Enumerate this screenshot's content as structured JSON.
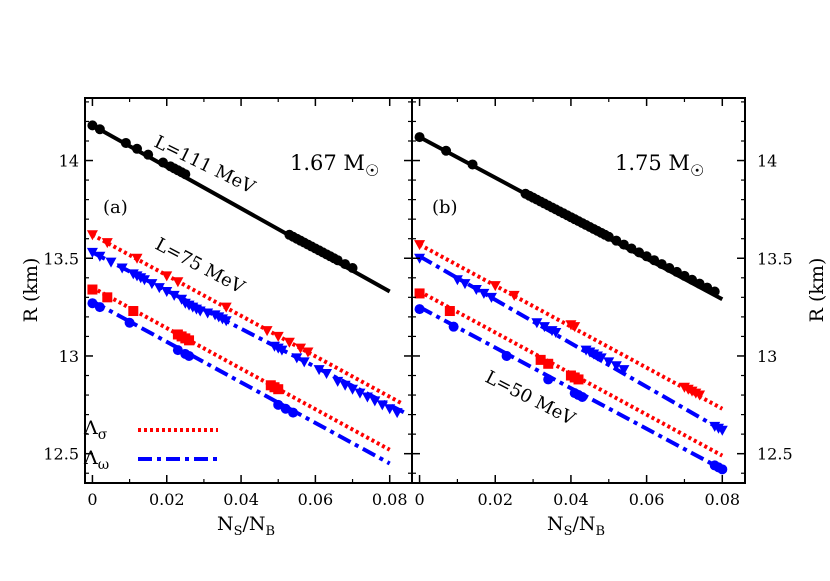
{
  "chart_data": [
    {
      "type": "scatter",
      "panel_label": "(a)",
      "mass_label": "1.67 M",
      "mass_symbol": "☉",
      "xlabel": {
        "main": "N",
        "sub1": "S",
        "mid": "/N",
        "sub2": "B"
      },
      "ylabel": "R (km)",
      "xlim": [
        -0.002,
        0.086
      ],
      "ylim": [
        12.35,
        14.32
      ],
      "xticks": [
        "0",
        "0.02",
        "0.04",
        "0.06",
        "0.08"
      ],
      "xtick_values": [
        0,
        0.02,
        0.04,
        0.06,
        0.08
      ],
      "yticks": [
        "12.5",
        "13",
        "13.5",
        "14"
      ],
      "ytick_values": [
        12.5,
        13.0,
        13.5,
        14.0
      ],
      "annotations": [
        {
          "text": "L=111 MeV",
          "x": 0.035,
          "y": 14.0
        },
        {
          "text": "L=75 MeV",
          "x": 0.05,
          "y": 13.42
        }
      ],
      "legend": [
        {
          "symbol": "Λ",
          "sub": "σ",
          "style": "dotted",
          "color": "#ff0000"
        },
        {
          "symbol": "Λ",
          "sub": "ω",
          "style": "dashdot",
          "color": "#0000ff"
        }
      ],
      "series": [
        {
          "line": [
            [
              0,
              14.18
            ],
            [
              0.08,
              13.33
            ]
          ],
          "color": "#000000",
          "line_style": "solid",
          "marker": "circle",
          "points": [
            [
              0,
              14.18
            ],
            [
              0.002,
              14.16
            ],
            [
              0.009,
              14.09
            ],
            [
              0.012,
              14.06
            ],
            [
              0.015,
              14.03
            ],
            [
              0.019,
              13.99
            ],
            [
              0.021,
              13.97
            ],
            [
              0.022,
              13.96
            ],
            [
              0.023,
              13.95
            ],
            [
              0.024,
              13.94
            ],
            [
              0.025,
              13.93
            ],
            [
              0.053,
              13.62
            ],
            [
              0.054,
              13.61
            ],
            [
              0.055,
              13.6
            ],
            [
              0.056,
              13.59
            ],
            [
              0.057,
              13.58
            ],
            [
              0.058,
              13.57
            ],
            [
              0.059,
              13.56
            ],
            [
              0.06,
              13.55
            ],
            [
              0.061,
              13.54
            ],
            [
              0.062,
              13.53
            ],
            [
              0.063,
              13.52
            ],
            [
              0.064,
              13.51
            ],
            [
              0.065,
              13.5
            ],
            [
              0.066,
              13.49
            ],
            [
              0.068,
              13.47
            ],
            [
              0.07,
              13.45
            ]
          ]
        },
        {
          "line": [
            [
              0,
              13.62
            ],
            [
              0.083,
              12.76
            ]
          ],
          "color": "#ff0000",
          "line_style": "dotted",
          "marker": "triangle-down",
          "points": [
            [
              0,
              13.62
            ],
            [
              0.004,
              13.58
            ],
            [
              0.012,
              13.5
            ],
            [
              0.02,
              13.41
            ],
            [
              0.023,
              13.38
            ],
            [
              0.036,
              13.25
            ],
            [
              0.047,
              13.13
            ],
            [
              0.05,
              13.1
            ],
            [
              0.053,
              13.07
            ],
            [
              0.056,
              13.04
            ],
            [
              0.058,
              13.02
            ]
          ]
        },
        {
          "line": [
            [
              0,
              13.53
            ],
            [
              0.085,
              12.7
            ]
          ],
          "color": "#0000ff",
          "line_style": "dashdot",
          "marker": "triangle-down",
          "points": [
            [
              0,
              13.53
            ],
            [
              0.002,
              13.51
            ],
            [
              0.005,
              13.48
            ],
            [
              0.008,
              13.45
            ],
            [
              0.011,
              13.42
            ],
            [
              0.012,
              13.41
            ],
            [
              0.013,
              13.4
            ],
            [
              0.014,
              13.39
            ],
            [
              0.016,
              13.37
            ],
            [
              0.018,
              13.35
            ],
            [
              0.02,
              13.33
            ],
            [
              0.022,
              13.31
            ],
            [
              0.024,
              13.29
            ],
            [
              0.025,
              13.27
            ],
            [
              0.026,
              13.26
            ],
            [
              0.027,
              13.25
            ],
            [
              0.028,
              13.24
            ],
            [
              0.029,
              13.23
            ],
            [
              0.031,
              13.22
            ],
            [
              0.033,
              13.21
            ],
            [
              0.034,
              13.2
            ],
            [
              0.035,
              13.19
            ],
            [
              0.036,
              13.18
            ],
            [
              0.049,
              13.05
            ],
            [
              0.05,
              13.04
            ],
            [
              0.051,
              13.03
            ],
            [
              0.055,
              12.99
            ],
            [
              0.057,
              12.97
            ],
            [
              0.061,
              12.93
            ],
            [
              0.063,
              12.91
            ],
            [
              0.066,
              12.87
            ],
            [
              0.068,
              12.85
            ],
            [
              0.07,
              12.83
            ],
            [
              0.072,
              12.81
            ],
            [
              0.074,
              12.79
            ],
            [
              0.076,
              12.77
            ],
            [
              0.078,
              12.75
            ],
            [
              0.08,
              12.73
            ],
            [
              0.082,
              12.71
            ]
          ]
        },
        {
          "line": [
            [
              0,
              13.35
            ],
            [
              0.08,
              12.52
            ]
          ],
          "color": "#ff0000",
          "line_style": "dotted",
          "marker": "square",
          "points": [
            [
              0,
              13.34
            ],
            [
              0.004,
              13.3
            ],
            [
              0.011,
              13.23
            ],
            [
              0.023,
              13.11
            ],
            [
              0.024,
              13.1
            ],
            [
              0.025,
              13.09
            ],
            [
              0.026,
              13.08
            ],
            [
              0.048,
              12.85
            ],
            [
              0.049,
              12.84
            ],
            [
              0.05,
              12.83
            ]
          ]
        },
        {
          "line": [
            [
              0,
              13.28
            ],
            [
              0.08,
              12.45
            ]
          ],
          "color": "#0000ff",
          "line_style": "dashdot",
          "marker": "circle",
          "points": [
            [
              0,
              13.27
            ],
            [
              0.002,
              13.25
            ],
            [
              0.01,
              13.17
            ],
            [
              0.023,
              13.03
            ],
            [
              0.025,
              13.01
            ],
            [
              0.026,
              13.0
            ],
            [
              0.05,
              12.75
            ],
            [
              0.052,
              12.73
            ],
            [
              0.054,
              12.71
            ]
          ]
        }
      ]
    },
    {
      "type": "scatter",
      "panel_label": "(b)",
      "mass_label": "1.75 M",
      "mass_symbol": "☉",
      "xlabel": {
        "main": "N",
        "sub1": "S",
        "mid": "/N",
        "sub2": "B"
      },
      "ylabel": "R (km)",
      "xlim": [
        -0.002,
        0.086
      ],
      "ylim": [
        12.35,
        14.32
      ],
      "xticks": [
        "0",
        "0.02",
        "0.04",
        "0.06",
        "0.08"
      ],
      "xtick_values": [
        0,
        0.02,
        0.04,
        0.06,
        0.08
      ],
      "yticks": [
        "12.5",
        "13",
        "13.5",
        "14"
      ],
      "ytick_values": [
        12.5,
        13.0,
        13.5,
        14.0
      ],
      "annotations": [
        {
          "text": "L=50 MeV",
          "x": 0.034,
          "y": 12.76
        }
      ],
      "series": [
        {
          "line": [
            [
              0,
              14.12
            ],
            [
              0.08,
              13.29
            ]
          ],
          "color": "#000000",
          "line_style": "solid",
          "marker": "circle",
          "points": [
            [
              0,
              14.12
            ],
            [
              0.007,
              14.05
            ],
            [
              0.014,
              13.98
            ],
            [
              0.028,
              13.83
            ],
            [
              0.029,
              13.82
            ],
            [
              0.03,
              13.81
            ],
            [
              0.031,
              13.8
            ],
            [
              0.032,
              13.79
            ],
            [
              0.033,
              13.78
            ],
            [
              0.034,
              13.77
            ],
            [
              0.035,
              13.76
            ],
            [
              0.036,
              13.75
            ],
            [
              0.037,
              13.74
            ],
            [
              0.038,
              13.73
            ],
            [
              0.039,
              13.72
            ],
            [
              0.04,
              13.71
            ],
            [
              0.041,
              13.7
            ],
            [
              0.042,
              13.69
            ],
            [
              0.043,
              13.68
            ],
            [
              0.044,
              13.67
            ],
            [
              0.045,
              13.66
            ],
            [
              0.046,
              13.65
            ],
            [
              0.047,
              13.64
            ],
            [
              0.048,
              13.63
            ],
            [
              0.049,
              13.62
            ],
            [
              0.05,
              13.61
            ],
            [
              0.052,
              13.59
            ],
            [
              0.054,
              13.57
            ],
            [
              0.056,
              13.55
            ],
            [
              0.058,
              13.53
            ],
            [
              0.06,
              13.51
            ],
            [
              0.062,
              13.49
            ],
            [
              0.064,
              13.47
            ],
            [
              0.066,
              13.45
            ],
            [
              0.068,
              13.43
            ],
            [
              0.07,
              13.41
            ],
            [
              0.072,
              13.39
            ],
            [
              0.074,
              13.37
            ],
            [
              0.076,
              13.35
            ],
            [
              0.078,
              13.33
            ]
          ]
        },
        {
          "line": [
            [
              0,
              13.57
            ],
            [
              0.08,
              12.73
            ]
          ],
          "color": "#ff0000",
          "line_style": "dotted",
          "marker": "triangle-down",
          "points": [
            [
              0,
              13.57
            ],
            [
              0.02,
              13.36
            ],
            [
              0.025,
              13.31
            ],
            [
              0.04,
              13.16
            ],
            [
              0.041,
              13.15
            ],
            [
              0.07,
              12.84
            ],
            [
              0.071,
              12.83
            ],
            [
              0.072,
              12.82
            ],
            [
              0.073,
              12.81
            ],
            [
              0.074,
              12.8
            ]
          ]
        },
        {
          "line": [
            [
              0,
              13.51
            ],
            [
              0.08,
              12.62
            ]
          ],
          "color": "#0000ff",
          "line_style": "dashdot",
          "marker": "triangle-down",
          "points": [
            [
              0,
              13.5
            ],
            [
              0.01,
              13.39
            ],
            [
              0.012,
              13.37
            ],
            [
              0.015,
              13.34
            ],
            [
              0.017,
              13.32
            ],
            [
              0.019,
              13.3
            ],
            [
              0.031,
              13.17
            ],
            [
              0.033,
              13.15
            ],
            [
              0.035,
              13.13
            ],
            [
              0.036,
              13.12
            ],
            [
              0.044,
              13.03
            ],
            [
              0.045,
              13.02
            ],
            [
              0.046,
              13.01
            ],
            [
              0.047,
              13.0
            ],
            [
              0.048,
              12.99
            ],
            [
              0.05,
              12.97
            ],
            [
              0.052,
              12.95
            ],
            [
              0.054,
              12.93
            ],
            [
              0.078,
              12.64
            ],
            [
              0.079,
              12.63
            ],
            [
              0.08,
              12.62
            ]
          ]
        },
        {
          "line": [
            [
              0,
              13.33
            ],
            [
              0.08,
              12.49
            ]
          ],
          "color": "#ff0000",
          "line_style": "dotted",
          "marker": "square",
          "points": [
            [
              0,
              13.32
            ],
            [
              0.008,
              13.23
            ],
            [
              0.032,
              12.98
            ],
            [
              0.034,
              12.96
            ],
            [
              0.04,
              12.9
            ],
            [
              0.041,
              12.89
            ],
            [
              0.042,
              12.88
            ]
          ]
        },
        {
          "line": [
            [
              0,
              13.25
            ],
            [
              0.08,
              12.42
            ]
          ],
          "color": "#0000ff",
          "line_style": "dashdot",
          "marker": "circle",
          "points": [
            [
              0,
              13.24
            ],
            [
              0.009,
              13.15
            ],
            [
              0.023,
              13.0
            ],
            [
              0.034,
              12.88
            ],
            [
              0.041,
              12.81
            ],
            [
              0.042,
              12.8
            ],
            [
              0.043,
              12.79
            ],
            [
              0.078,
              12.44
            ],
            [
              0.079,
              12.43
            ],
            [
              0.08,
              12.42
            ]
          ]
        }
      ]
    }
  ]
}
